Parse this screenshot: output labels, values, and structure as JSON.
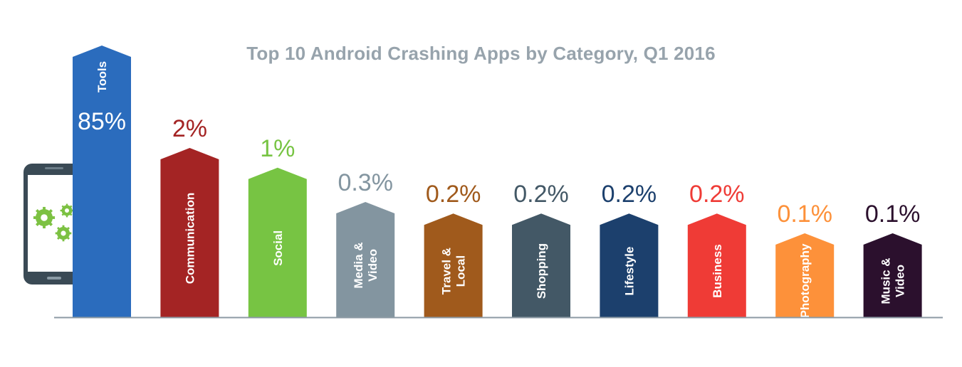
{
  "chart_data": {
    "type": "bar",
    "title": "Top 10 Android Crashing Apps by Category, Q1 2016",
    "xlabel": "",
    "ylabel": "",
    "categories": [
      "Tools",
      "Communication",
      "Social",
      "Media & Video",
      "Travel & Local",
      "Shopping",
      "Lifestyle",
      "Business",
      "Photography",
      "Music & Video"
    ],
    "category_lines": [
      [
        "Tools"
      ],
      [
        "Communication"
      ],
      [
        "Social"
      ],
      [
        "Media &",
        "Video"
      ],
      [
        "Travel &",
        "Local"
      ],
      [
        "Shopping"
      ],
      [
        "Lifestyle"
      ],
      [
        "Business"
      ],
      [
        "Photography"
      ],
      [
        "Music &",
        "Video"
      ]
    ],
    "values": [
      85,
      2,
      1,
      0.3,
      0.2,
      0.2,
      0.2,
      0.2,
      0.1,
      0.1
    ],
    "value_labels": [
      "85%",
      "2%",
      "1%",
      "0.3%",
      "0.2%",
      "0.2%",
      "0.2%",
      "0.2%",
      "0.1%",
      "0.1%"
    ],
    "colors": [
      "#2b6cbd",
      "#a42424",
      "#77c443",
      "#8395a0",
      "#a05a1c",
      "#435866",
      "#1c406d",
      "#ef3b36",
      "#fd913a",
      "#2b102d"
    ],
    "label_colors": [
      "#ffffff",
      "#a42424",
      "#77c443",
      "#8395a0",
      "#a05a1c",
      "#435866",
      "#1c406d",
      "#ef3b36",
      "#fd913a",
      "#2b102d"
    ],
    "axis_color": "#8c9aa4",
    "title_color": "#97a3ac",
    "scale": "non-linear (bars not drawn to scale)",
    "grid": false,
    "legend": "none",
    "icon": "smartphone-with-gears-icon"
  }
}
